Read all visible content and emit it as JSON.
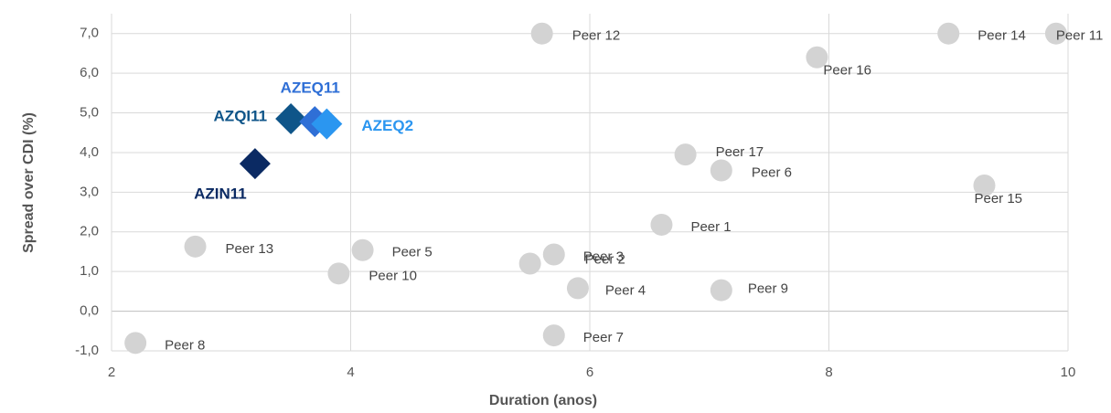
{
  "chart_data": {
    "type": "scatter",
    "x_label": "Duration (anos)",
    "y_label": "Spread over CDI (%)",
    "xlim": [
      2,
      10
    ],
    "xticks": [
      2,
      4,
      6,
      8,
      10
    ],
    "ylim": [
      -1,
      7.5
    ],
    "yticks": [
      {
        "value": -1,
        "label": "-1,0"
      },
      {
        "value": 0,
        "label": "0,0"
      },
      {
        "value": 1,
        "label": "1,0"
      },
      {
        "value": 2,
        "label": "2,0"
      },
      {
        "value": 3,
        "label": "3,0"
      },
      {
        "value": 4,
        "label": "4,0"
      },
      {
        "value": 5,
        "label": "5,0"
      },
      {
        "value": 6,
        "label": "6,0"
      },
      {
        "value": 7,
        "label": "7,0"
      }
    ],
    "grid": true,
    "series": [
      {
        "name": "Peer 12",
        "x": 5.6,
        "y": 7.0,
        "color": "#d3d3d3",
        "marker": "circle"
      },
      {
        "name": "Peer 14",
        "x": 9.0,
        "y": 7.0,
        "color": "#d3d3d3",
        "marker": "circle"
      },
      {
        "name": "Peer 11",
        "x": 9.9,
        "y": 7.0,
        "color": "#d3d3d3",
        "marker": "circle"
      },
      {
        "name": "Peer 16",
        "x": 7.9,
        "y": 6.4,
        "color": "#d3d3d3",
        "marker": "circle"
      },
      {
        "name": "Peer 17",
        "x": 6.8,
        "y": 3.95,
        "color": "#d3d3d3",
        "marker": "circle"
      },
      {
        "name": "Peer 6",
        "x": 7.1,
        "y": 3.55,
        "color": "#d3d3d3",
        "marker": "circle"
      },
      {
        "name": "Peer 15",
        "x": 9.3,
        "y": 3.17,
        "color": "#d3d3d3",
        "marker": "circle"
      },
      {
        "name": "Peer 1",
        "x": 6.6,
        "y": 2.18,
        "color": "#d3d3d3",
        "marker": "circle"
      },
      {
        "name": "Peer 13",
        "x": 2.7,
        "y": 1.63,
        "color": "#d3d3d3",
        "marker": "circle"
      },
      {
        "name": "Peer 5",
        "x": 4.1,
        "y": 1.54,
        "color": "#d3d3d3",
        "marker": "circle"
      },
      {
        "name": "Peer 3",
        "x": 5.7,
        "y": 1.43,
        "color": "#d3d3d3",
        "marker": "circle"
      },
      {
        "name": "Peer 2",
        "x": 5.5,
        "y": 1.2,
        "color": "#d3d3d3",
        "marker": "circle"
      },
      {
        "name": "Peer 10",
        "x": 3.9,
        "y": 0.95,
        "color": "#d3d3d3",
        "marker": "circle"
      },
      {
        "name": "Peer 4",
        "x": 5.9,
        "y": 0.58,
        "color": "#d3d3d3",
        "marker": "circle"
      },
      {
        "name": "Peer 9",
        "x": 7.1,
        "y": 0.53,
        "color": "#d3d3d3",
        "marker": "circle"
      },
      {
        "name": "Peer 7",
        "x": 5.7,
        "y": -0.61,
        "color": "#d3d3d3",
        "marker": "circle"
      },
      {
        "name": "Peer 8",
        "x": 2.2,
        "y": -0.8,
        "color": "#d3d3d3",
        "marker": "circle"
      },
      {
        "name": "AZIN11",
        "x": 3.2,
        "y": 3.72,
        "color": "#0b2a63",
        "marker": "diamond"
      },
      {
        "name": "AZQI11",
        "x": 3.5,
        "y": 4.85,
        "color": "#0f5589",
        "marker": "diamond"
      },
      {
        "name": "AZEQ11",
        "x": 3.7,
        "y": 4.78,
        "color": "#2f6fd6",
        "marker": "diamond"
      },
      {
        "name": "AZEQ2",
        "x": 3.8,
        "y": 4.72,
        "color": "#2b96f0",
        "marker": "diamond"
      }
    ]
  }
}
